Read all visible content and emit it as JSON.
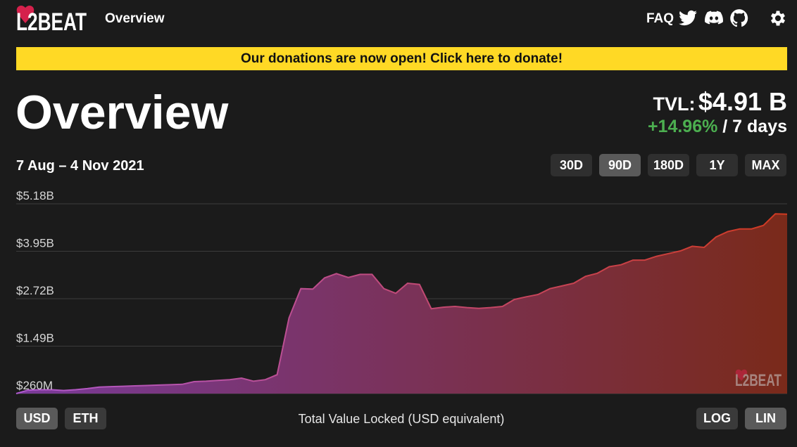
{
  "header": {
    "logo_text": "L2BEAT",
    "nav_overview": "Overview",
    "faq": "FAQ",
    "icons": [
      "twitter-icon",
      "discord-icon",
      "github-icon",
      "settings-icon"
    ]
  },
  "banner": {
    "text": "Our donations are now open! Click here to donate!",
    "color": "#ffd925"
  },
  "page": {
    "title": "Overview",
    "tvl_label": "TVL:",
    "tvl_value": "$4.91 B",
    "change_pct": "+14.96%",
    "change_period": " / 7 days",
    "change_color": "#4caf50"
  },
  "range": {
    "date_range": "7 Aug – 4 Nov 2021",
    "buttons": [
      "30D",
      "90D",
      "180D",
      "1Y",
      "MAX"
    ],
    "active": "90D"
  },
  "controls": {
    "currency": [
      "USD",
      "ETH"
    ],
    "currency_active": "USD",
    "scale": [
      "LOG",
      "LIN"
    ],
    "scale_active": "LIN",
    "caption": "Total Value Locked (USD equivalent)"
  },
  "chart_data": {
    "type": "area",
    "title": "",
    "xlabel": "Total Value Locked (USD equivalent)",
    "ylabel": "",
    "x_range": [
      "7 Aug 2021",
      "4 Nov 2021"
    ],
    "y_ticks": [
      "$5.18B",
      "$3.95B",
      "$2.72B",
      "$1.49B",
      "$260M"
    ],
    "y_tick_values": [
      5.18,
      3.95,
      2.72,
      1.49,
      0.26
    ],
    "ylim": [
      0.26,
      5.18
    ],
    "grid": true,
    "gradient_colors": [
      "#7a3a9a",
      "#7a2a1a"
    ],
    "line_colors": [
      "#b05ad0",
      "#d03a20"
    ],
    "series": [
      {
        "values": [
          0.26,
          0.35,
          0.36,
          0.36,
          0.34,
          0.36,
          0.39,
          0.43,
          0.44,
          0.45,
          0.46,
          0.47,
          0.48,
          0.49,
          0.5,
          0.57,
          0.58,
          0.6,
          0.62,
          0.66,
          0.58,
          0.62,
          0.75,
          2.22,
          2.98,
          2.97,
          3.26,
          3.37,
          3.27,
          3.35,
          3.35,
          2.98,
          2.86,
          3.12,
          3.09,
          2.46,
          2.5,
          2.52,
          2.49,
          2.47,
          2.49,
          2.52,
          2.7,
          2.77,
          2.83,
          2.98,
          3.05,
          3.12,
          3.3,
          3.38,
          3.55,
          3.6,
          3.72,
          3.72,
          3.82,
          3.89,
          3.96,
          4.08,
          4.05,
          4.32,
          4.46,
          4.53,
          4.53,
          4.62,
          4.92,
          4.91
        ]
      }
    ]
  }
}
